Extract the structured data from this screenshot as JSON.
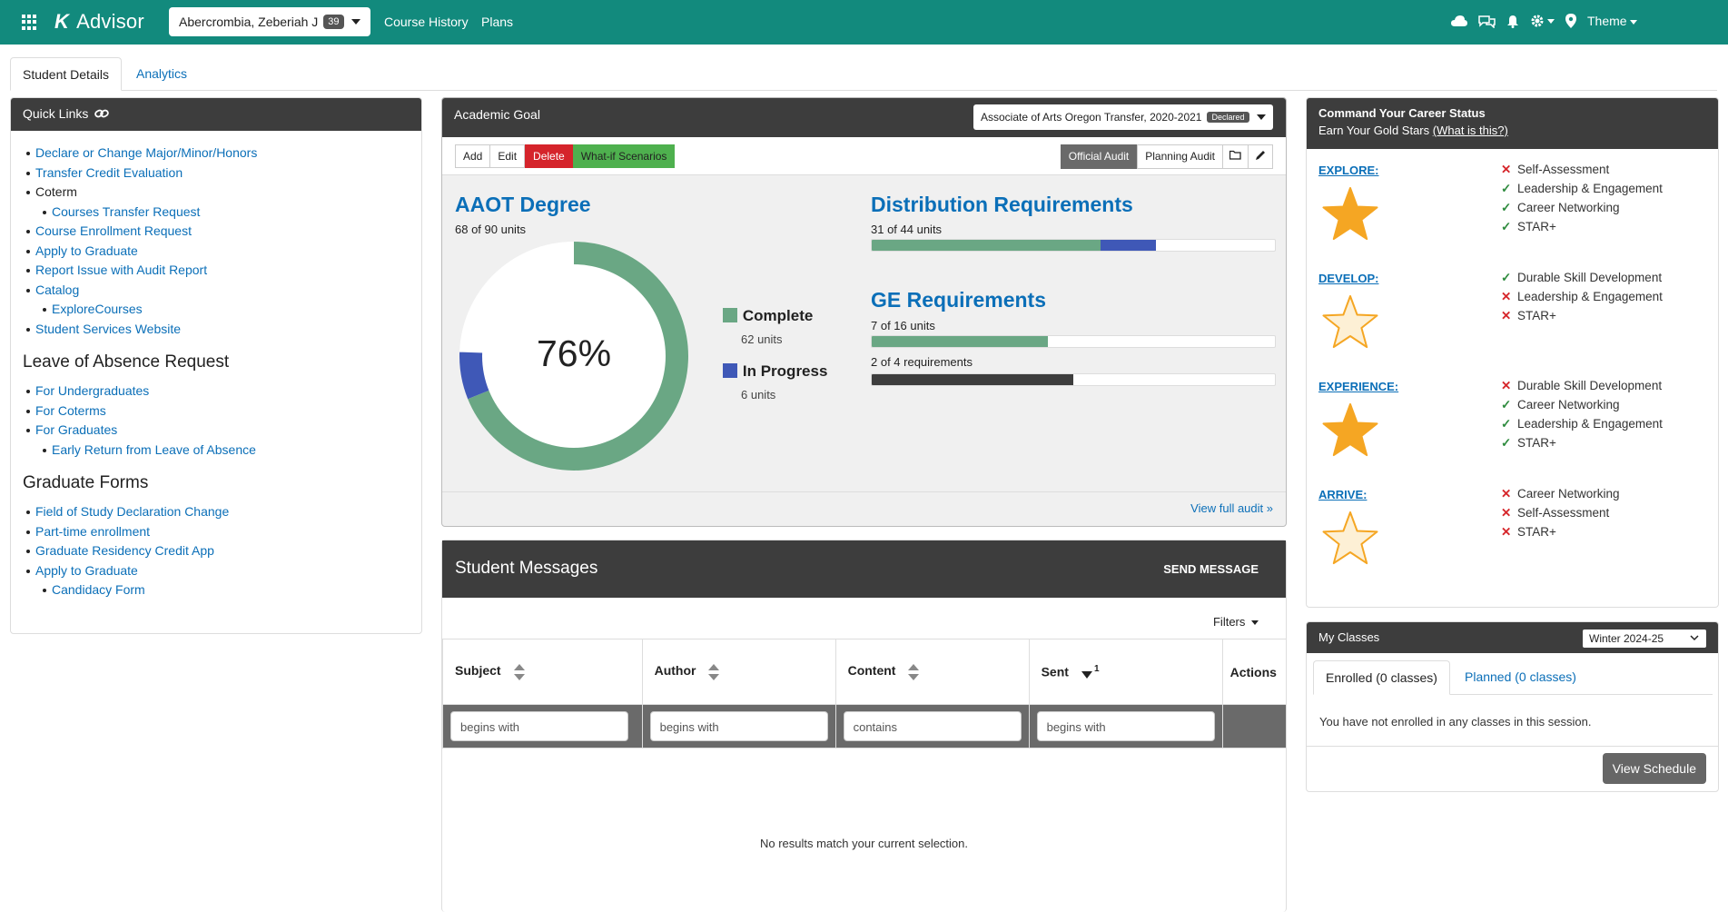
{
  "topbar": {
    "app_name": "Advisor",
    "student_name": "Abercrombia, Zeberiah J",
    "student_count": "39",
    "nav": [
      "Course History",
      "Plans"
    ],
    "theme_label": "Theme"
  },
  "tabs": [
    "Student Details",
    "Analytics"
  ],
  "quick_links": {
    "title": "Quick Links",
    "items": [
      {
        "label": "Declare or Change Major/Minor/Honors",
        "link": true,
        "level": 0
      },
      {
        "label": "Transfer Credit Evaluation",
        "link": true,
        "level": 0
      },
      {
        "label": "Coterm",
        "link": false,
        "level": 0
      },
      {
        "label": "Courses Transfer Request",
        "link": true,
        "level": 1
      },
      {
        "label": "Course Enrollment Request",
        "link": true,
        "level": 0
      },
      {
        "label": "Apply to Graduate",
        "link": true,
        "level": 0
      },
      {
        "label": "Report Issue with Audit Report",
        "link": true,
        "level": 0
      },
      {
        "label": "Catalog",
        "link": true,
        "level": 0
      },
      {
        "label": "ExploreCourses",
        "link": true,
        "level": 1
      },
      {
        "label": "Student Services Website",
        "link": true,
        "level": 0
      }
    ],
    "loa_title": "Leave of Absence Request",
    "loa_items": [
      {
        "label": "For Undergraduates",
        "level": 0
      },
      {
        "label": "For Coterms",
        "level": 0
      },
      {
        "label": "For Graduates",
        "level": 0
      },
      {
        "label": "Early Return from Leave of Absence",
        "level": 1
      }
    ],
    "grad_title": "Graduate Forms",
    "grad_items": [
      {
        "label": "Field of Study Declaration Change",
        "level": 0
      },
      {
        "label": "Part-time enrollment",
        "level": 0
      },
      {
        "label": "Graduate Residency Credit App",
        "level": 0
      },
      {
        "label": "Apply to Graduate",
        "level": 0
      },
      {
        "label": "Candidacy Form",
        "level": 1
      }
    ]
  },
  "goal": {
    "title": "Academic Goal",
    "program": "Associate of Arts Oregon Transfer, 2020-2021",
    "program_status": "Declared",
    "buttons": {
      "add": "Add",
      "edit": "Edit",
      "delete": "Delete",
      "whatif": "What-if Scenarios",
      "official": "Official Audit",
      "planning": "Planning Audit"
    },
    "degree_title": "AAOT Degree",
    "degree_units": "68 of 90 units",
    "percent_label": "76%",
    "complete_label": "Complete",
    "complete_units": "62 units",
    "inprogress_label": "In Progress",
    "inprogress_units": "6 units",
    "dist_title": "Distribution Requirements",
    "dist_units": "31 of 44 units",
    "ge_title": "GE Requirements",
    "ge_units": "7 of 16 units",
    "ge_reqs": "2 of 4 requirements",
    "view_audit": "View full audit »"
  },
  "progress": {
    "degree": {
      "complete": 62,
      "in_progress": 6,
      "total": 90
    },
    "dist": {
      "complete": 25,
      "in_progress": 6,
      "total": 44
    },
    "ge_units": {
      "complete": 7,
      "in_progress": 0,
      "total": 16
    },
    "ge_reqs": {
      "complete": 2,
      "total": 4
    }
  },
  "colors": {
    "teal": "#128a7d",
    "complete": "#6aa784",
    "in_progress": "#3f58b7",
    "dark": "#3d3d3d",
    "star_gold": "#f5a623",
    "star_pale": "#fdf0d5"
  },
  "messages": {
    "title": "Student Messages",
    "send": "SEND MESSAGE",
    "filters": "Filters",
    "columns": [
      "Subject",
      "Author",
      "Content",
      "Sent",
      "Actions"
    ],
    "sent_sort_index": "1",
    "filter_placeholders": [
      "begins with",
      "begins with",
      "contains",
      "begins with"
    ],
    "empty": "No results match your current selection."
  },
  "career": {
    "title": "Command Your Career Status",
    "subtitle": "Earn Your Gold Stars",
    "what_link": "(What is this?)",
    "sections": [
      {
        "name": "EXPLORE:",
        "star": "gold",
        "items": [
          {
            "t": "Self-Assessment",
            "ok": false
          },
          {
            "t": "Leadership & Engagement",
            "ok": true
          },
          {
            "t": "Career Networking",
            "ok": true
          },
          {
            "t": "STAR+",
            "ok": true
          }
        ]
      },
      {
        "name": "DEVELOP:",
        "star": "pale",
        "items": [
          {
            "t": "Durable Skill Development",
            "ok": true
          },
          {
            "t": "Leadership & Engagement",
            "ok": false
          },
          {
            "t": "STAR+",
            "ok": false
          }
        ]
      },
      {
        "name": "EXPERIENCE:",
        "star": "gold",
        "items": [
          {
            "t": "Durable Skill Development",
            "ok": false
          },
          {
            "t": "Career Networking",
            "ok": true
          },
          {
            "t": "Leadership & Engagement",
            "ok": true
          },
          {
            "t": "STAR+",
            "ok": true
          }
        ]
      },
      {
        "name": "ARRIVE:",
        "star": "pale",
        "items": [
          {
            "t": "Career Networking",
            "ok": false
          },
          {
            "t": "Self-Assessment",
            "ok": false
          },
          {
            "t": "STAR+",
            "ok": false
          }
        ]
      }
    ]
  },
  "classes": {
    "title": "My Classes",
    "term": "Winter 2024-25",
    "tab_enrolled": "Enrolled (0 classes)",
    "tab_planned": "Planned (0 classes)",
    "empty": "You have not enrolled in any classes in this session.",
    "button": "View Schedule"
  }
}
